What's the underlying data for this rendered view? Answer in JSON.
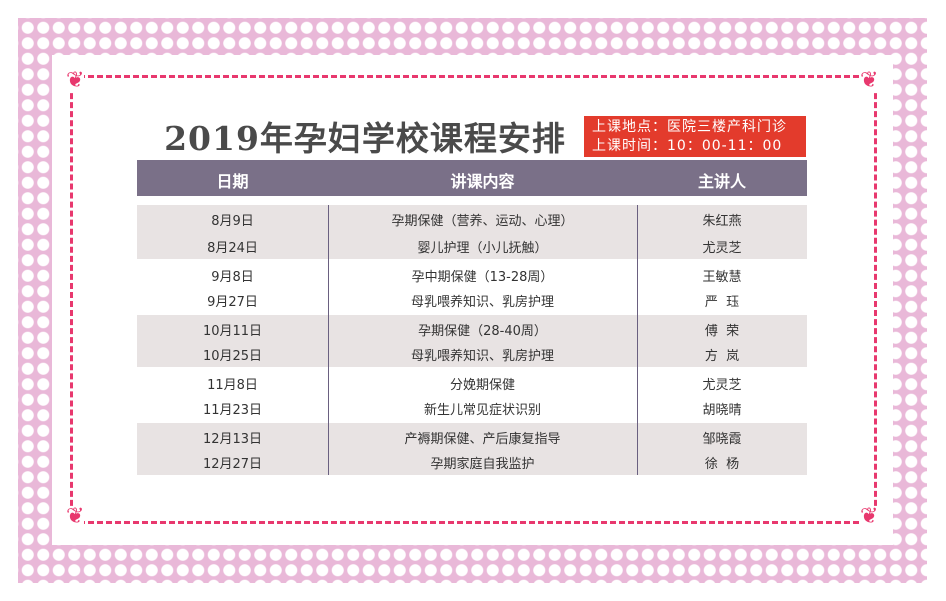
{
  "title": "2019年孕妇学校课程安排",
  "info": {
    "location": "上课地点：医院三楼产科门诊",
    "time": "上课时间：10：00-11：00"
  },
  "colors": {
    "accent": "#e33b2c",
    "header": "#7a7088",
    "border": "#e8386e",
    "pattern": "#e9b8d8"
  },
  "table": {
    "headers": [
      "日期",
      "讲课内容",
      "主讲人"
    ],
    "rows": [
      {
        "date": "8月9日",
        "topic": "孕期保健（营养、运动、心理）",
        "speaker": "朱红燕"
      },
      {
        "date": "8月24日",
        "topic": "婴儿护理（小儿抚触）",
        "speaker": "尤灵芝"
      },
      {
        "date": "9月8日",
        "topic": "孕中期保健（13-28周）",
        "speaker": "王敏慧"
      },
      {
        "date": "9月27日",
        "topic": "母乳喂养知识、乳房护理",
        "speaker": "严  珏"
      },
      {
        "date": "10月11日",
        "topic": "孕期保健（28-40周）",
        "speaker": "傅  荣"
      },
      {
        "date": "10月25日",
        "topic": "母乳喂养知识、乳房护理",
        "speaker": "方  岚"
      },
      {
        "date": "11月8日",
        "topic": "分娩期保健",
        "speaker": "尤灵芝"
      },
      {
        "date": "11月23日",
        "topic": "新生儿常见症状识别",
        "speaker": "胡晓晴"
      },
      {
        "date": "12月13日",
        "topic": "产褥期保健、产后康复指导",
        "speaker": "邹晓霞"
      },
      {
        "date": "12月27日",
        "topic": "孕期家庭自我监护",
        "speaker": "徐  杨"
      }
    ]
  }
}
